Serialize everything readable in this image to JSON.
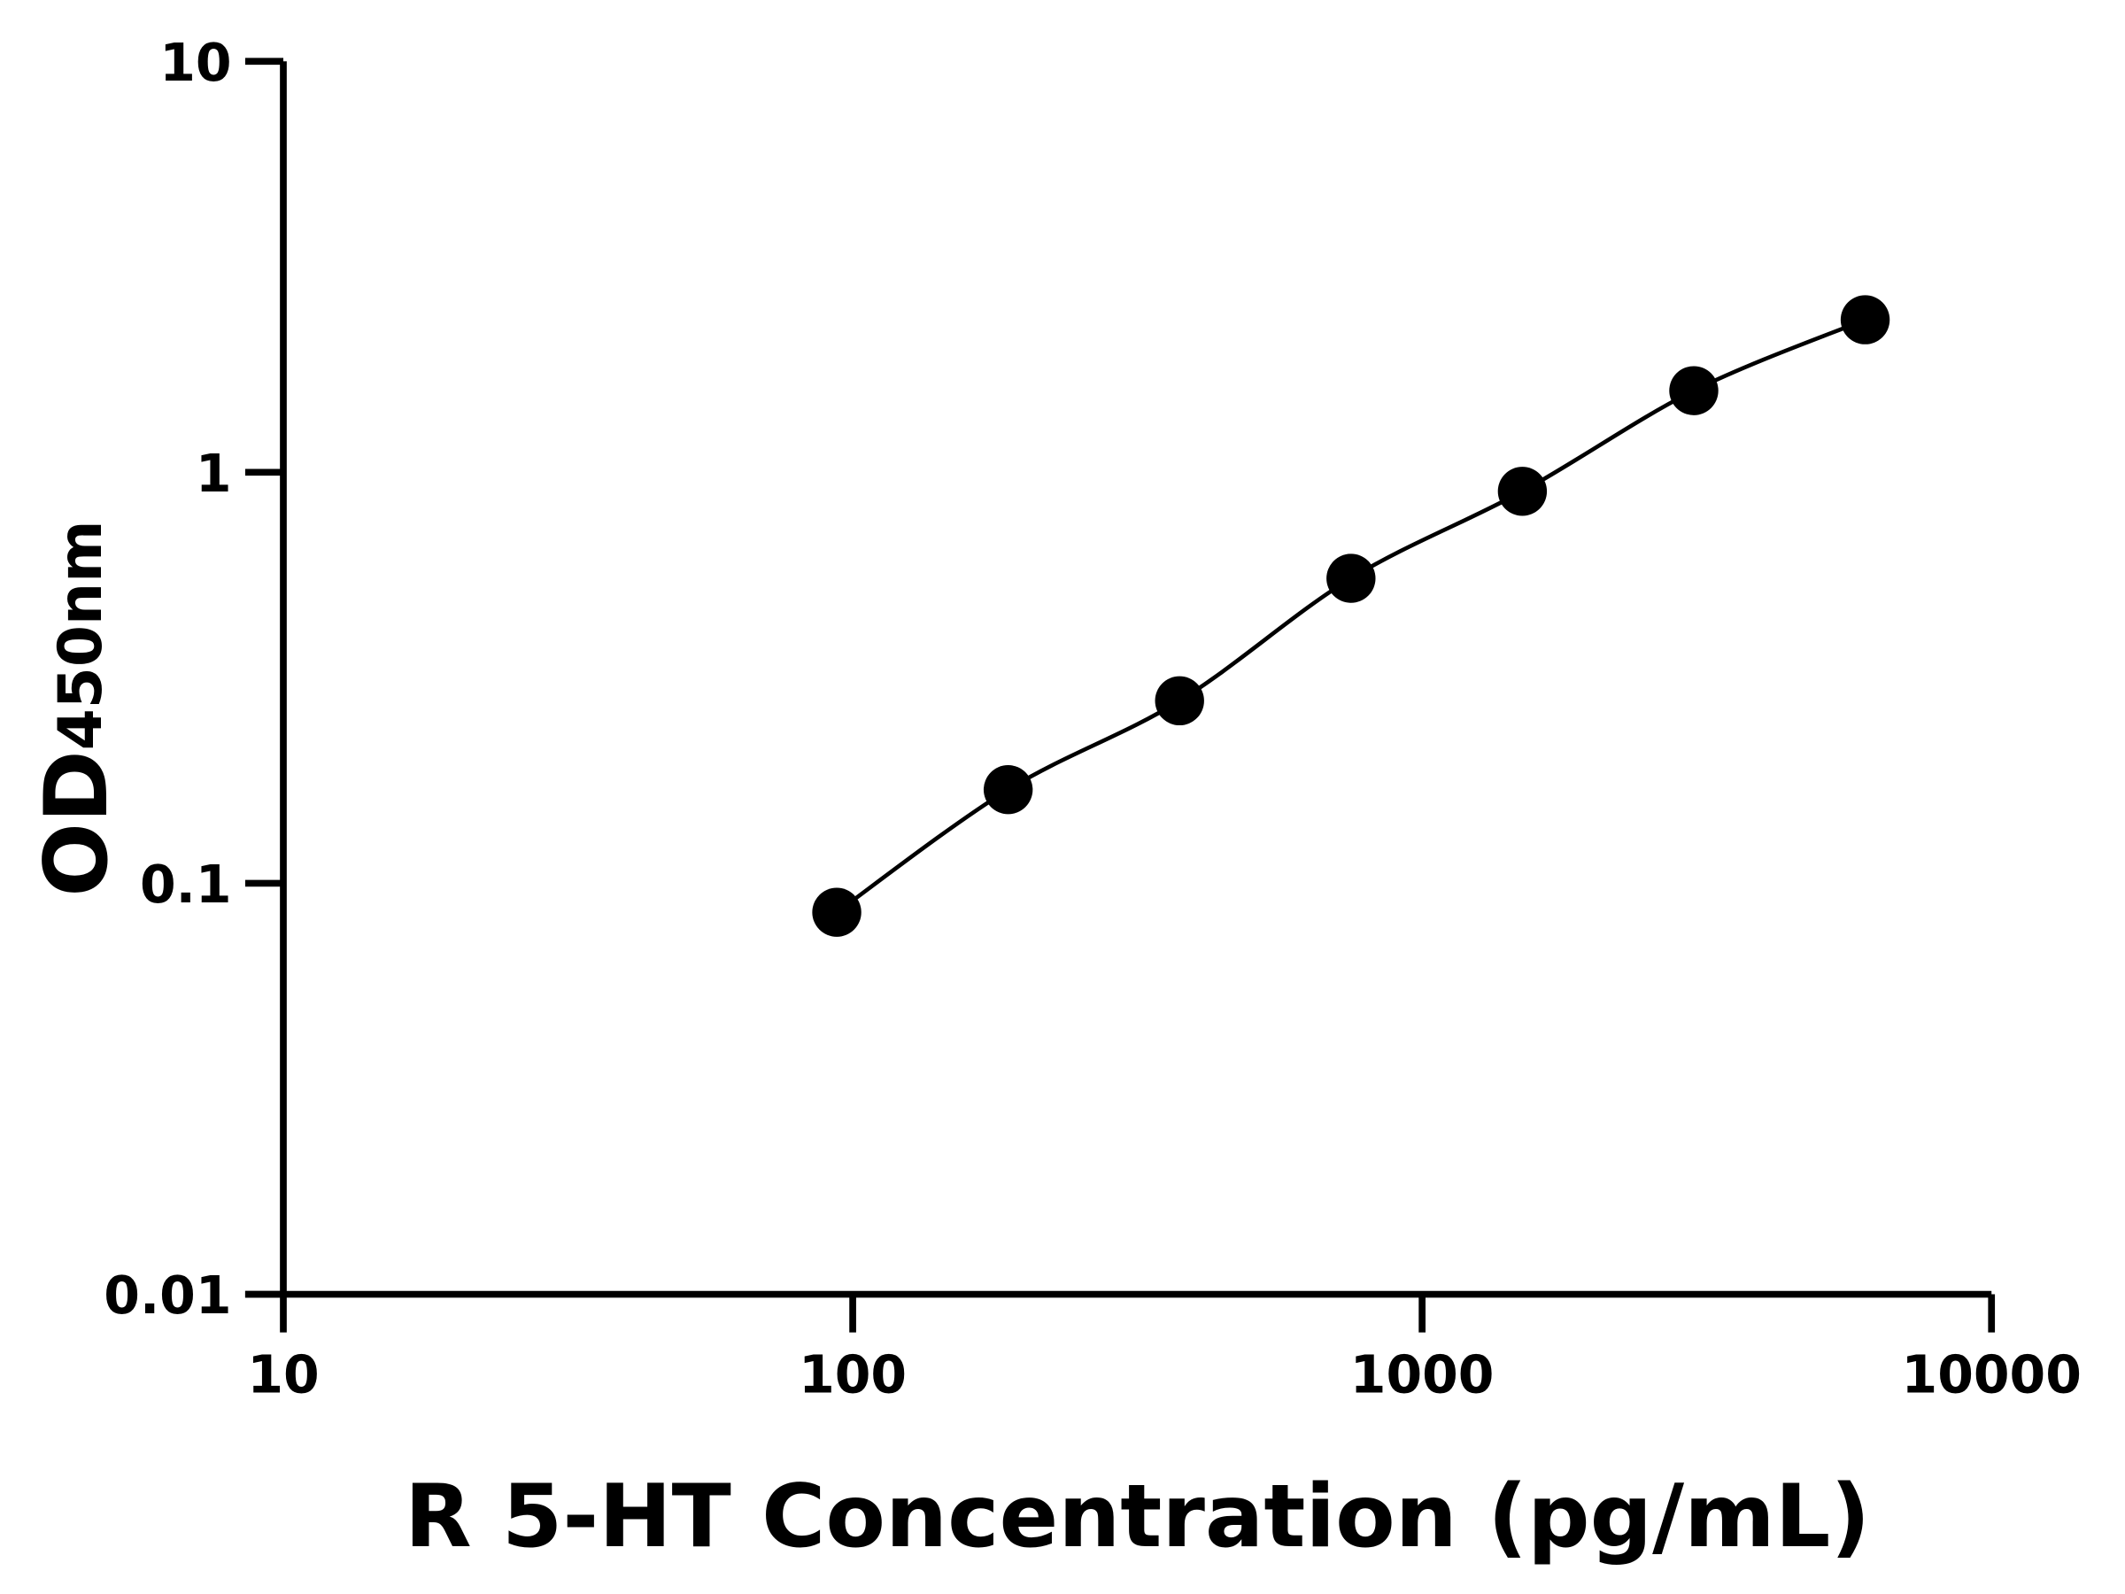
{
  "chart_data": {
    "type": "scatter",
    "xlabel": "R 5-HT Concentration (pg/mL)",
    "ylabel_main": "OD",
    "ylabel_sub": "450nm",
    "x_scale": "log",
    "y_scale": "log",
    "xlim": [
      10,
      10000
    ],
    "ylim": [
      0.01,
      10
    ],
    "x_ticks": [
      10,
      100,
      1000,
      10000
    ],
    "x_tick_labels": [
      "10",
      "100",
      "1000",
      "10000"
    ],
    "y_ticks": [
      0.01,
      0.1,
      1,
      10
    ],
    "y_tick_labels": [
      "0.01",
      "0.1",
      "1",
      "10"
    ],
    "grid": false,
    "series": [
      {
        "x": [
          93.75,
          187.5,
          375,
          750,
          1500,
          3000,
          6000
        ],
        "y": [
          0.085,
          0.169,
          0.278,
          0.552,
          0.899,
          1.58,
          2.35
        ],
        "marker": "circle",
        "color": "#000000",
        "fit_curve": true
      }
    ]
  }
}
